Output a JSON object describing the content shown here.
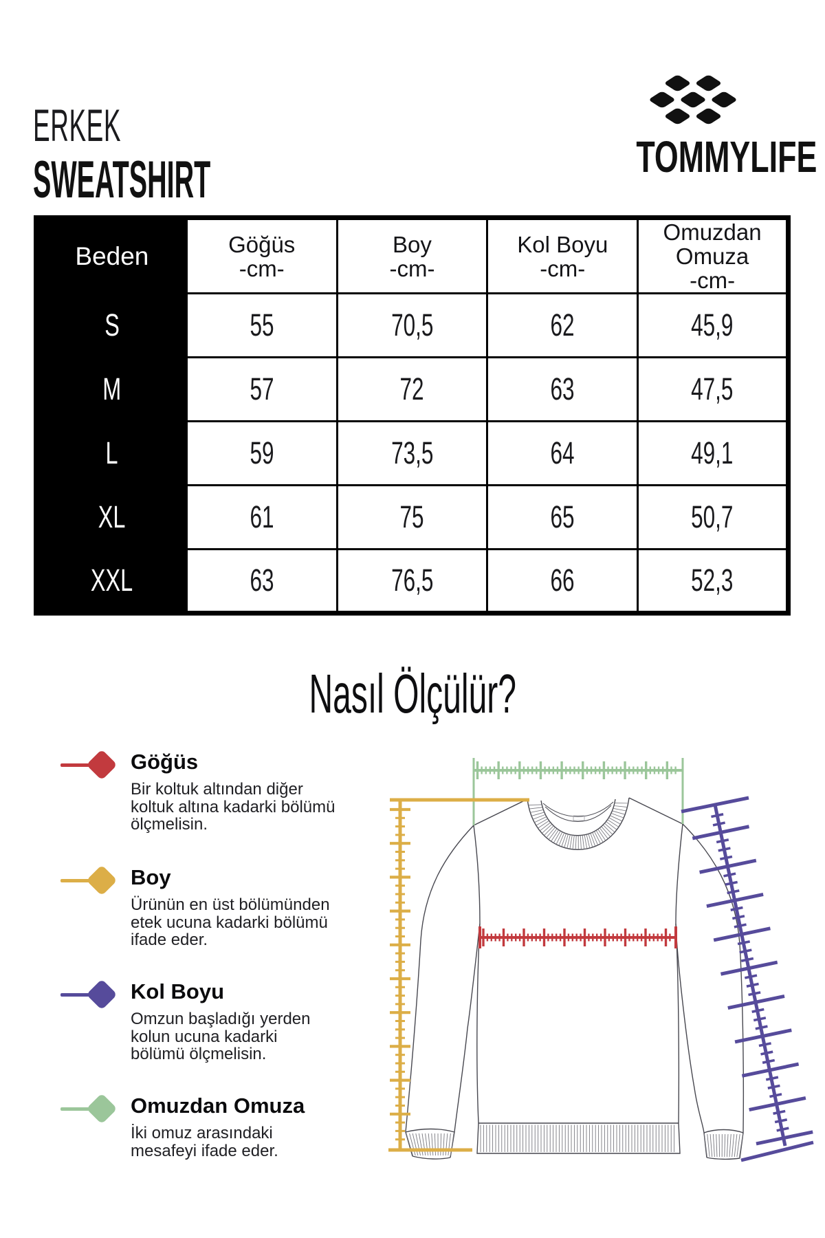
{
  "header": {
    "category": "ERKEK",
    "product": "SWEATSHIRT",
    "brand": "TOMMYLIFE"
  },
  "size_table": {
    "size_column_label": "Beden",
    "columns": [
      {
        "label": "Göğüs",
        "unit": "-cm-"
      },
      {
        "label": "Boy",
        "unit": "-cm-"
      },
      {
        "label": "Kol Boyu",
        "unit": "-cm-"
      },
      {
        "label": "Omuzdan Omuza",
        "unit": "-cm-"
      }
    ],
    "rows": [
      {
        "size": "S",
        "values": [
          "55",
          "70,5",
          "62",
          "45,9"
        ]
      },
      {
        "size": "M",
        "values": [
          "57",
          "72",
          "63",
          "47,5"
        ]
      },
      {
        "size": "L",
        "values": [
          "59",
          "73,5",
          "64",
          "49,1"
        ]
      },
      {
        "size": "XL",
        "values": [
          "61",
          "75",
          "65",
          "50,7"
        ]
      },
      {
        "size": "XXL",
        "values": [
          "63",
          "76,5",
          "66",
          "52,3"
        ]
      }
    ]
  },
  "how_to": {
    "title": "Nasıl Ölçülür?",
    "items": [
      {
        "name": "Göğüs",
        "color": "#c23a3e",
        "description": "Bir koltuk altından diğer koltuk altına kadarki bölümü ölçmelisin.",
        "lines": [
          "Bir koltuk altından diğer",
          "koltuk altına kadarki bölümü",
          "ölçmelisin."
        ]
      },
      {
        "name": "Boy",
        "color": "#dcae47",
        "description": "Ürünün en üst bölümünden etek ucuna kadarki bölümü ifade eder.",
        "lines": [
          "Ürünün en üst bölümünden",
          "etek ucuna kadarki bölümü",
          "ifade eder."
        ]
      },
      {
        "name": "Kol Boyu",
        "color": "#564b9b",
        "description": "Omzun başladığı yerden kolun ucuna kadarki bölümü ölçmelisin.",
        "lines": [
          "Omzun başladığı yerden",
          "kolun ucuna kadarki",
          "bölümü ölçmelisin."
        ]
      },
      {
        "name": "Omuzdan Omuza",
        "color": "#9bc69a",
        "description": "İki omuz arasındaki mesafeyi ifade eder.",
        "lines": [
          "İki omuz arasındaki",
          "mesafeyi ifade eder."
        ]
      }
    ]
  },
  "diagram": {
    "colors": {
      "chest": "#c23a3e",
      "length": "#dcae47",
      "sleeve": "#564b9b",
      "shoulder": "#9bc69a",
      "outline": "#47474f",
      "rib": "#77777e"
    }
  }
}
